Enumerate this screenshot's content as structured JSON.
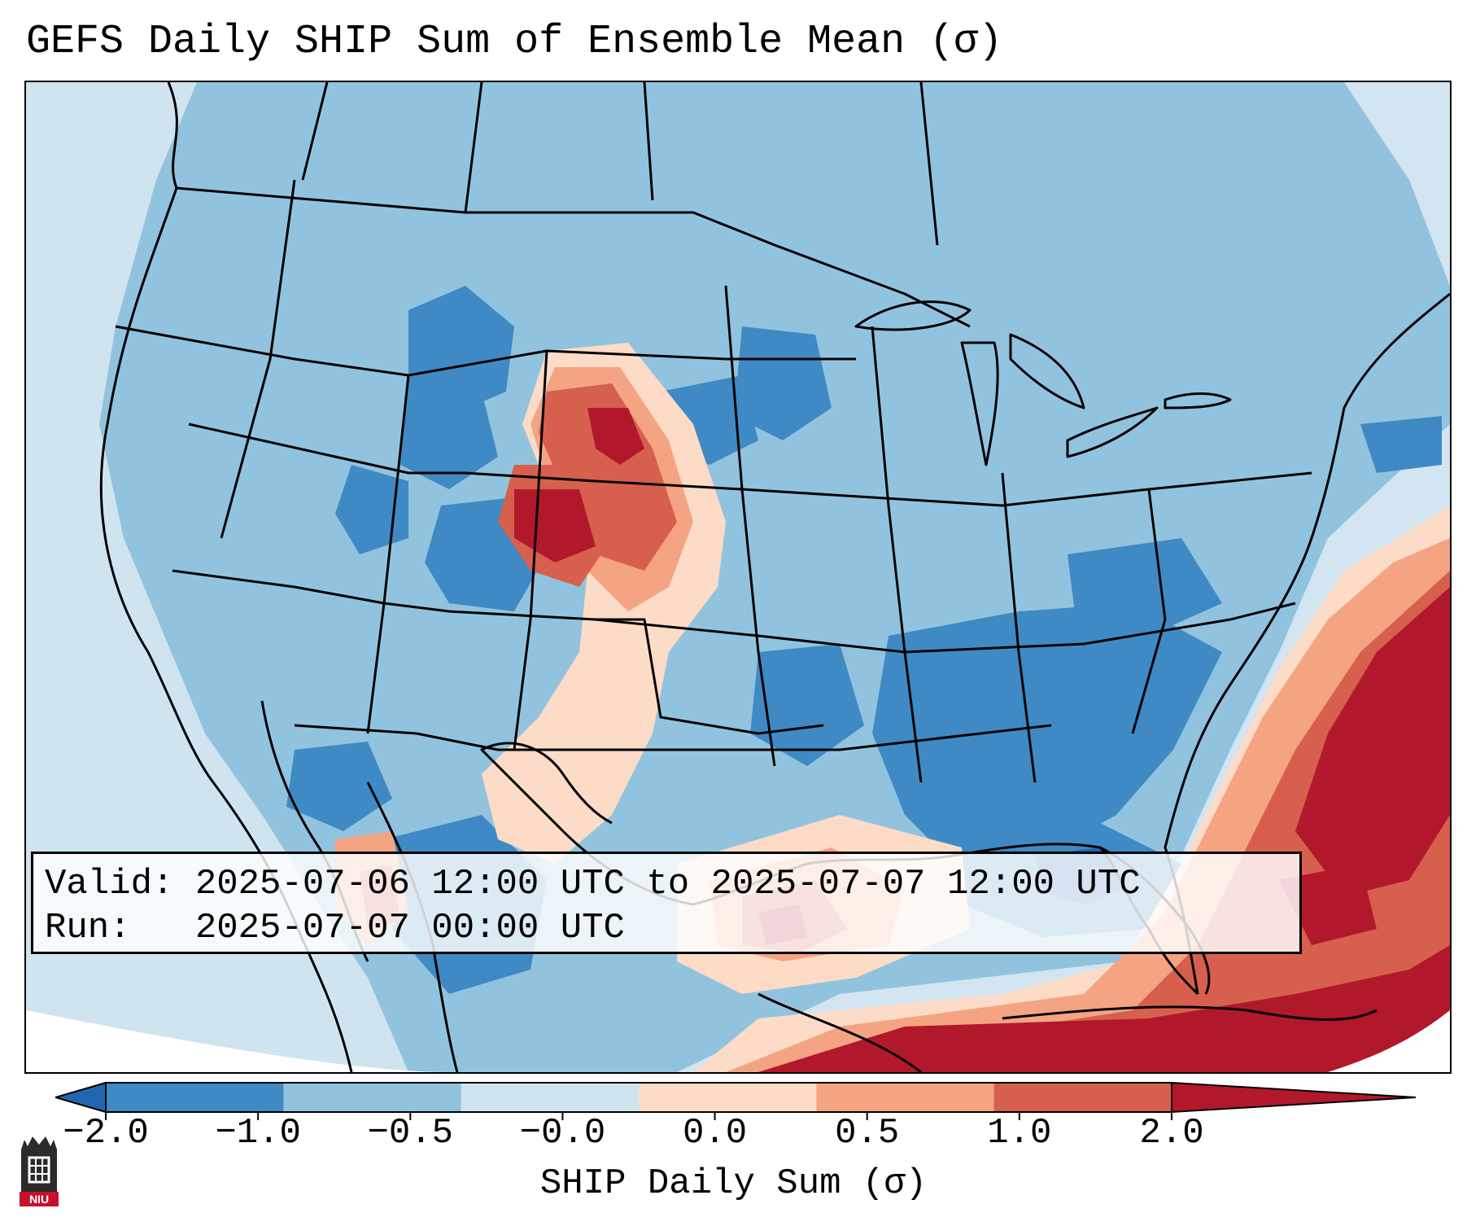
{
  "title": "GEFS Daily SHIP Sum of Ensemble Mean (σ)",
  "info": {
    "valid_label": "Valid:",
    "valid_value": "2025-07-06 12:00 UTC to 2025-07-07 12:00 UTC",
    "run_label": "Run:",
    "run_value": "2025-07-07 00:00 UTC"
  },
  "colorbar": {
    "label": "SHIP Daily Sum (σ)",
    "ticks": [
      "−2.0",
      "−1.0",
      "−0.5",
      "−0.0",
      "0.0",
      "0.5",
      "1.0",
      "2.0"
    ],
    "bin_colors": [
      "#3f8ac4",
      "#92c3de",
      "#d0e4ef",
      "#fcdbc7",
      "#f4a482",
      "#d6604d"
    ],
    "under_color": "#2166ac",
    "over_color": "#b2182b",
    "extend": "both"
  },
  "map": {
    "projection": "lambert-conformal",
    "domain": "CONUS",
    "background_color": "#d2e5f1",
    "outside_color": "#ffffff",
    "coastline_color": "#000000"
  },
  "logo": {
    "text": "NIU",
    "colors": {
      "tower": "#2b2b2b",
      "band": "#c8102e"
    }
  }
}
